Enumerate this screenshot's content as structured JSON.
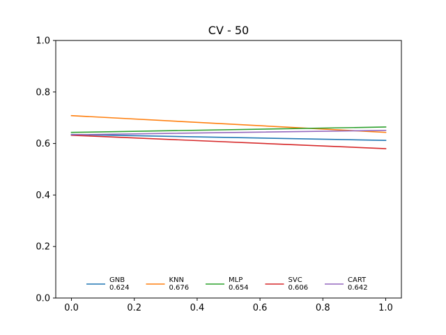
{
  "chart_data": {
    "type": "line",
    "title": "CV - 50",
    "xlabel": "",
    "ylabel": "",
    "xlim": [
      -0.05,
      1.05
    ],
    "ylim": [
      0.0,
      1.0
    ],
    "x_ticks": [
      0.0,
      0.2,
      0.4,
      0.6,
      0.8,
      1.0
    ],
    "x_tick_labels": [
      "0.0",
      "0.2",
      "0.4",
      "0.6",
      "0.8",
      "1.0"
    ],
    "y_ticks": [
      0.0,
      0.2,
      0.4,
      0.6,
      0.8,
      1.0
    ],
    "y_tick_labels": [
      "0.0",
      "0.2",
      "0.4",
      "0.6",
      "0.8",
      "1.0"
    ],
    "grid": false,
    "legend": {
      "placement": "lower-center",
      "columns": 5,
      "frame": false
    },
    "x": [
      0.0,
      1.0
    ],
    "series": [
      {
        "name": "GNB",
        "score": "0.624",
        "color": "#1f77b4",
        "values": [
          0.635,
          0.612
        ]
      },
      {
        "name": "KNN",
        "score": "0.676",
        "color": "#ff7f0e",
        "values": [
          0.708,
          0.643
        ]
      },
      {
        "name": "MLP",
        "score": "0.654",
        "color": "#2ca02c",
        "values": [
          0.643,
          0.664
        ]
      },
      {
        "name": "SVC",
        "score": "0.606",
        "color": "#d62728",
        "values": [
          0.632,
          0.58
        ]
      },
      {
        "name": "CART",
        "score": "0.642",
        "color": "#9467bd",
        "values": [
          0.634,
          0.651
        ]
      }
    ]
  }
}
